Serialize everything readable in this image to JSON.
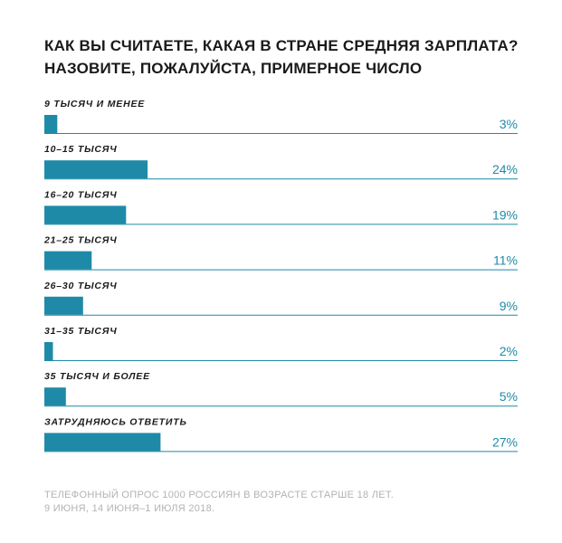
{
  "chart_data": {
    "type": "bar",
    "orientation": "horizontal",
    "title_lines": [
      "КАК ВЫ СЧИТАЕТЕ, КАКАЯ В СТРАНЕ СРЕДНЯЯ ЗАРПЛАТА?",
      "НАЗОВИТЕ, ПОЖАЛУЙСТА, ПРИМЕРНОЕ ЧИСЛО"
    ],
    "categories": [
      "9 ТЫСЯЧ И МЕНЕЕ",
      "10–15 ТЫСЯЧ",
      "16–20 ТЫСЯЧ",
      "21–25 ТЫСЯЧ",
      "26–30 ТЫСЯЧ",
      "31–35 ТЫСЯЧ",
      "35 ТЫСЯЧ И БОЛЕЕ",
      "ЗАТРУДНЯЮСЬ ОТВЕТИТЬ"
    ],
    "values": [
      3,
      24,
      19,
      11,
      9,
      2,
      5,
      27
    ],
    "value_labels": [
      "3%",
      "24%",
      "19%",
      "11%",
      "9%",
      "2%",
      "5%",
      "27%"
    ],
    "unit": "%",
    "xlim": [
      0,
      110
    ],
    "grid": false,
    "legend": "none",
    "colors": {
      "bar": "#1f8aa8",
      "baseline": "#1f8aa8",
      "value_text": "#1f8aa8"
    }
  },
  "footnote_lines": [
    "ТЕЛЕФОННЫЙ ОПРОС 1000 РОССИЯН В ВОЗРАСТЕ СТАРШЕ 18 ЛЕТ.",
    "9 ИЮНЯ, 14 ИЮНЯ–1 ИЮЛЯ 2018."
  ]
}
